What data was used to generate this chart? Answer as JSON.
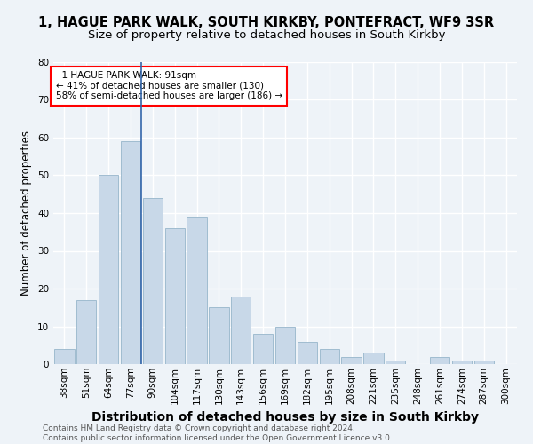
{
  "title1": "1, HAGUE PARK WALK, SOUTH KIRKBY, PONTEFRACT, WF9 3SR",
  "title2": "Size of property relative to detached houses in South Kirkby",
  "xlabel": "Distribution of detached houses by size in South Kirkby",
  "ylabel": "Number of detached properties",
  "bar_color": "#c8d8e8",
  "bar_edge_color": "#a0bcd0",
  "annotation_line_color": "#3366aa",
  "categories": [
    "38sqm",
    "51sqm",
    "64sqm",
    "77sqm",
    "90sqm",
    "104sqm",
    "117sqm",
    "130sqm",
    "143sqm",
    "156sqm",
    "169sqm",
    "182sqm",
    "195sqm",
    "208sqm",
    "221sqm",
    "235sqm",
    "248sqm",
    "261sqm",
    "274sqm",
    "287sqm",
    "300sqm"
  ],
  "values": [
    4,
    17,
    50,
    59,
    44,
    36,
    39,
    15,
    18,
    8,
    10,
    6,
    4,
    2,
    3,
    1,
    0,
    2,
    1,
    1,
    0
  ],
  "annotation_box_text": "  1 HAGUE PARK WALK: 91sqm\n← 41% of detached houses are smaller (130)\n58% of semi-detached houses are larger (186) →",
  "property_bar_index": 4,
  "ylim": [
    0,
    80
  ],
  "yticks": [
    0,
    10,
    20,
    30,
    40,
    50,
    60,
    70,
    80
  ],
  "footer": "Contains HM Land Registry data © Crown copyright and database right 2024.\nContains public sector information licensed under the Open Government Licence v3.0.",
  "background_color": "#eef3f8",
  "grid_color": "#ffffff",
  "title1_fontsize": 10.5,
  "title2_fontsize": 9.5,
  "xlabel_fontsize": 10,
  "ylabel_fontsize": 8.5,
  "tick_fontsize": 7.5,
  "annotation_fontsize": 7.5,
  "footer_fontsize": 6.5
}
